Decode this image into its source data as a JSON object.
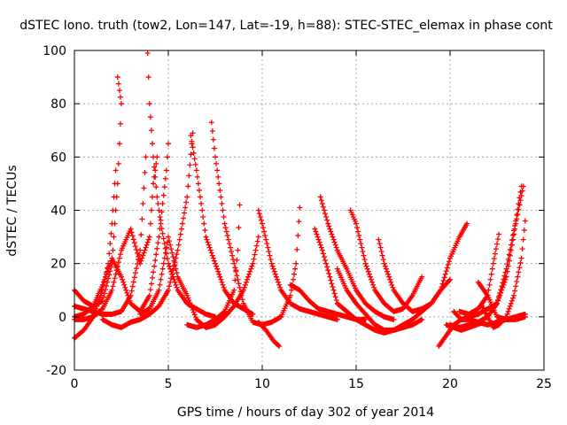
{
  "chart_data": {
    "type": "scatter",
    "title": "dSTEC Iono. truth (tow2, Lon=147, Lat=-19, h=88): STEC-STEC_elemax in phase cont",
    "xlabel": "GPS time / hours of day 302 of year 2014",
    "ylabel": "dSTEC  / TECUs",
    "xlim": [
      0,
      25
    ],
    "ylim": [
      -20,
      100
    ],
    "xticks": [
      "0",
      "5",
      "10",
      "15",
      "20",
      "25"
    ],
    "yticks": [
      "-20",
      "0",
      "20",
      "40",
      "60",
      "80",
      "100"
    ],
    "grid": true,
    "marker": "+",
    "color": "#ff0000",
    "series": [
      {
        "points": [
          [
            0.0,
            10
          ],
          [
            0.5,
            6
          ],
          [
            1.0,
            4
          ],
          [
            1.5,
            6
          ],
          [
            2.0,
            20
          ],
          [
            2.3,
            50
          ],
          [
            2.5,
            80
          ],
          [
            2.3,
            90
          ]
        ]
      },
      {
        "points": [
          [
            0.0,
            4
          ],
          [
            0.5,
            3
          ],
          [
            1.0,
            2
          ],
          [
            1.5,
            1
          ],
          [
            2.0,
            1
          ],
          [
            2.5,
            2
          ],
          [
            3.0,
            8
          ],
          [
            3.5,
            25
          ],
          [
            3.8,
            60
          ]
        ]
      },
      {
        "points": [
          [
            0.0,
            -8
          ],
          [
            0.5,
            -5
          ],
          [
            1.0,
            0
          ],
          [
            1.5,
            10
          ],
          [
            1.8,
            20
          ],
          [
            2.0,
            35
          ],
          [
            2.2,
            55
          ]
        ]
      },
      {
        "points": [
          [
            0.0,
            -1
          ],
          [
            0.5,
            -1
          ],
          [
            1.0,
            0
          ],
          [
            1.5,
            3
          ],
          [
            2.0,
            10
          ],
          [
            2.5,
            25
          ],
          [
            3.0,
            33
          ],
          [
            3.5,
            20
          ],
          [
            4.0,
            30
          ],
          [
            4.2,
            50
          ],
          [
            4.4,
            60
          ]
        ]
      },
      {
        "points": [
          [
            0.0,
            0
          ],
          [
            0.5,
            1
          ],
          [
            1.0,
            4
          ],
          [
            1.5,
            12
          ],
          [
            2.0,
            22
          ],
          [
            2.5,
            15
          ],
          [
            3.0,
            5
          ],
          [
            3.5,
            2
          ],
          [
            4.0,
            8
          ],
          [
            4.5,
            30
          ],
          [
            4.9,
            55
          ],
          [
            5.0,
            65
          ]
        ]
      },
      {
        "points": [
          [
            1.5,
            -1
          ],
          [
            2.0,
            -3
          ],
          [
            2.5,
            -4
          ],
          [
            3.0,
            -2
          ],
          [
            3.5,
            -1
          ],
          [
            4.0,
            1
          ],
          [
            4.5,
            4
          ],
          [
            5.0,
            10
          ],
          [
            5.5,
            25
          ],
          [
            6.0,
            45
          ],
          [
            6.3,
            69
          ]
        ]
      },
      {
        "points": [
          [
            3.9,
            99
          ],
          [
            3.95,
            90
          ],
          [
            4.0,
            80
          ],
          [
            4.1,
            70
          ],
          [
            4.2,
            60
          ],
          [
            4.4,
            45
          ],
          [
            4.6,
            35
          ],
          [
            5.0,
            20
          ],
          [
            5.5,
            10
          ],
          [
            6.0,
            5
          ],
          [
            6.5,
            3
          ],
          [
            7.0,
            1
          ],
          [
            7.5,
            0
          ]
        ]
      },
      {
        "points": [
          [
            6.0,
            -3
          ],
          [
            6.5,
            -4
          ],
          [
            7.0,
            -3
          ],
          [
            7.5,
            -1
          ],
          [
            8.0,
            2
          ],
          [
            8.5,
            10
          ],
          [
            8.7,
            25
          ],
          [
            8.8,
            42
          ]
        ]
      },
      {
        "points": [
          [
            6.2,
            68
          ],
          [
            6.5,
            55
          ],
          [
            7.0,
            30
          ],
          [
            7.5,
            20
          ],
          [
            8.0,
            10
          ],
          [
            8.5,
            5
          ],
          [
            9.0,
            3
          ],
          [
            9.5,
            1
          ]
        ]
      },
      {
        "points": [
          [
            7.3,
            73
          ],
          [
            7.5,
            60
          ],
          [
            7.8,
            45
          ],
          [
            8.0,
            35
          ],
          [
            8.5,
            20
          ],
          [
            9.0,
            5
          ],
          [
            9.5,
            -2
          ],
          [
            10.0,
            -3
          ],
          [
            10.5,
            -2
          ],
          [
            11.0,
            0
          ],
          [
            11.5,
            8
          ],
          [
            11.8,
            20
          ],
          [
            12.0,
            41
          ]
        ]
      },
      {
        "points": [
          [
            3.5,
            1
          ],
          [
            4.0,
            3
          ],
          [
            4.5,
            10
          ],
          [
            5.0,
            30
          ],
          [
            5.5,
            15
          ],
          [
            6.0,
            8
          ],
          [
            6.5,
            -1
          ],
          [
            7.0,
            -4
          ],
          [
            7.5,
            -3
          ],
          [
            8.0,
            0
          ],
          [
            8.5,
            4
          ],
          [
            9.0,
            10
          ],
          [
            9.5,
            20
          ],
          [
            9.8,
            30
          ]
        ]
      },
      {
        "points": [
          [
            9.8,
            40
          ],
          [
            10.0,
            35
          ],
          [
            10.5,
            20
          ],
          [
            11.0,
            10
          ],
          [
            11.5,
            5
          ],
          [
            12.0,
            3
          ],
          [
            12.5,
            2
          ],
          [
            13.0,
            1
          ],
          [
            13.5,
            0
          ],
          [
            14.0,
            -1
          ]
        ]
      },
      {
        "points": [
          [
            9.8,
            -2
          ],
          [
            10.2,
            -5
          ],
          [
            10.6,
            -9
          ],
          [
            10.9,
            -11
          ]
        ]
      },
      {
        "points": [
          [
            11.5,
            12
          ],
          [
            12.0,
            10
          ],
          [
            12.5,
            6
          ],
          [
            13.0,
            3
          ],
          [
            13.5,
            2
          ],
          [
            14.0,
            1
          ],
          [
            14.5,
            0
          ],
          [
            15.0,
            -1
          ],
          [
            15.5,
            -1
          ]
        ]
      },
      {
        "points": [
          [
            12.8,
            33
          ],
          [
            13.2,
            25
          ],
          [
            13.6,
            15
          ],
          [
            14.0,
            5
          ],
          [
            14.5,
            2
          ],
          [
            15.0,
            -1
          ],
          [
            15.5,
            -3
          ],
          [
            16.0,
            -5
          ],
          [
            16.5,
            -6
          ],
          [
            17.0,
            -5
          ],
          [
            17.5,
            -4
          ],
          [
            18.0,
            -3
          ],
          [
            18.5,
            -1
          ]
        ]
      },
      {
        "points": [
          [
            13.1,
            45
          ],
          [
            13.5,
            35
          ],
          [
            14.0,
            25
          ],
          [
            14.5,
            18
          ],
          [
            15.0,
            10
          ],
          [
            15.5,
            5
          ],
          [
            16.0,
            2
          ],
          [
            16.5,
            0
          ],
          [
            17.0,
            -1
          ]
        ]
      },
      {
        "points": [
          [
            14.7,
            40
          ],
          [
            15.0,
            35
          ],
          [
            15.5,
            20
          ],
          [
            16.0,
            10
          ],
          [
            16.5,
            5
          ],
          [
            17.0,
            2
          ],
          [
            17.5,
            3
          ],
          [
            18.0,
            8
          ],
          [
            18.5,
            15
          ]
        ]
      },
      {
        "points": [
          [
            16.2,
            29
          ],
          [
            16.5,
            20
          ],
          [
            17.0,
            10
          ],
          [
            17.5,
            5
          ],
          [
            18.0,
            2
          ],
          [
            18.5,
            3
          ],
          [
            19.0,
            5
          ],
          [
            19.5,
            10
          ],
          [
            20.0,
            22
          ],
          [
            20.5,
            30
          ],
          [
            20.9,
            35
          ]
        ]
      },
      {
        "points": [
          [
            14.0,
            18
          ],
          [
            14.5,
            10
          ],
          [
            15.0,
            5
          ],
          [
            15.5,
            1
          ],
          [
            16.0,
            -3
          ],
          [
            16.5,
            -5
          ],
          [
            17.0,
            -5
          ],
          [
            17.5,
            -3
          ],
          [
            18.0,
            -1
          ],
          [
            18.5,
            2
          ],
          [
            19.0,
            5
          ],
          [
            19.5,
            10
          ],
          [
            20.0,
            14
          ]
        ]
      },
      {
        "points": [
          [
            19.4,
            -11
          ],
          [
            19.8,
            -7
          ],
          [
            20.2,
            -3
          ],
          [
            20.6,
            -1
          ],
          [
            21.0,
            0
          ],
          [
            21.5,
            1
          ],
          [
            22.0,
            3
          ],
          [
            22.5,
            5
          ],
          [
            23.0,
            15
          ],
          [
            23.5,
            35
          ],
          [
            23.9,
            49
          ]
        ]
      },
      {
        "points": [
          [
            20.0,
            -3
          ],
          [
            20.5,
            -4
          ],
          [
            21.0,
            -3
          ],
          [
            21.5,
            -2
          ],
          [
            22.0,
            0
          ],
          [
            22.5,
            5
          ],
          [
            23.0,
            18
          ],
          [
            23.5,
            36
          ],
          [
            23.8,
            49
          ]
        ]
      },
      {
        "points": [
          [
            20.5,
            2
          ],
          [
            21.0,
            1
          ],
          [
            21.5,
            3
          ],
          [
            22.0,
            8
          ],
          [
            22.3,
            20
          ],
          [
            22.6,
            31
          ]
        ]
      },
      {
        "points": [
          [
            21.5,
            13
          ],
          [
            22.0,
            8
          ],
          [
            22.5,
            0
          ],
          [
            23.0,
            -1
          ],
          [
            23.5,
            -1
          ],
          [
            24.0,
            0
          ]
        ]
      },
      {
        "points": [
          [
            21.7,
            4
          ],
          [
            22.0,
            0
          ],
          [
            22.3,
            -4
          ],
          [
            22.6,
            -3
          ],
          [
            23.0,
            0
          ],
          [
            23.4,
            8
          ],
          [
            23.8,
            22
          ],
          [
            24.0,
            36
          ]
        ]
      },
      {
        "points": [
          [
            20.2,
            2
          ],
          [
            20.6,
            -1
          ],
          [
            21.0,
            -1
          ],
          [
            21.5,
            -2
          ],
          [
            22.0,
            -3
          ],
          [
            22.5,
            -2
          ],
          [
            23.0,
            -1
          ],
          [
            23.5,
            0
          ],
          [
            24.0,
            1
          ]
        ]
      },
      {
        "points": [
          [
            19.8,
            -3
          ],
          [
            20.2,
            -4
          ],
          [
            20.6,
            -5
          ],
          [
            21.0,
            -4
          ],
          [
            21.4,
            -3
          ],
          [
            21.8,
            -2
          ]
        ]
      }
    ]
  }
}
